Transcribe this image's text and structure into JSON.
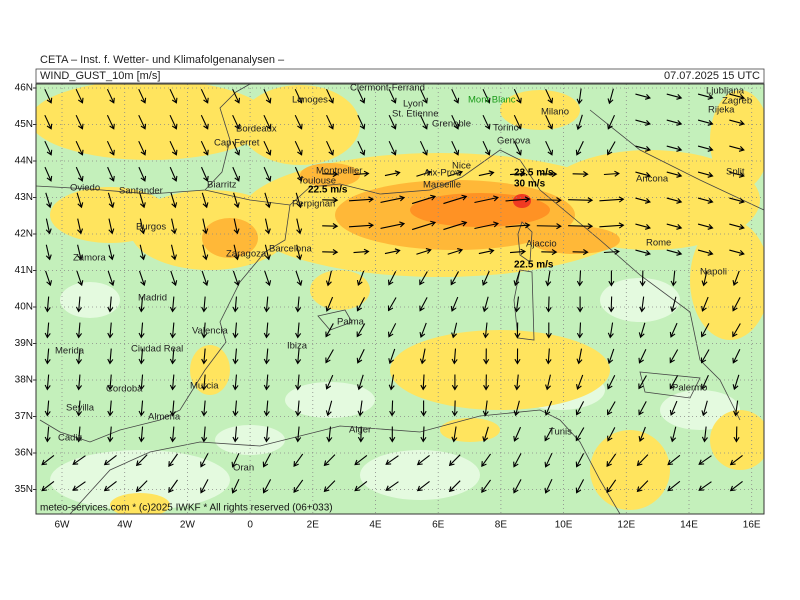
{
  "header": {
    "institute": "CETA – Inst. f. Wetter- und Klimafolgenanalysen –",
    "variable": "WIND_GUST_10m [m/s]",
    "valid_time": "07.07.2025 15 UTC"
  },
  "map": {
    "lat_labels": [
      "46N",
      "45N",
      "44N",
      "43N",
      "42N",
      "41N",
      "40N",
      "39N",
      "38N",
      "37N",
      "36N",
      "35N"
    ],
    "lon_labels": [
      "6W",
      "4W",
      "2W",
      "0",
      "2E",
      "4E",
      "6E",
      "8E",
      "10E",
      "12E",
      "14E",
      "16E"
    ],
    "places": [
      "Clermont-Ferrand",
      "Limoges",
      "Lyon",
      "Mont Blanc",
      "Milano",
      "St. Etienne",
      "Grenoble",
      "Torino",
      "Genova",
      "Bordeaux",
      "Cap Ferret",
      "Montpellier",
      "Toulouse",
      "Nice",
      "Aix-Prov.",
      "Marseille",
      "Oviedo",
      "Santander",
      "Biarritz",
      "Perpignan",
      "Burgos",
      "Zaragoza",
      "Barcelona",
      "Zamora",
      "Ajaccio",
      "Rome",
      "Napoli",
      "Madrid",
      "Palma",
      "Valencia",
      "Ibiza",
      "Merida",
      "Ciudad Real",
      "Murcia",
      "Palermo",
      "Almeria",
      "Sevilla",
      "Cordoba",
      "Cadiz",
      "Alger",
      "Tunis",
      "Oran",
      "Ancona",
      "Split",
      "Ljubljana",
      "Zagreb",
      "Rijeka"
    ],
    "annotations": [
      "22.5 m/s",
      "22.5 m/s",
      "30 m/s",
      "22.5 m/s"
    ]
  },
  "footer": "meteo-services.com * (c)2025 IWKF * All rights reserved (06+033)"
}
